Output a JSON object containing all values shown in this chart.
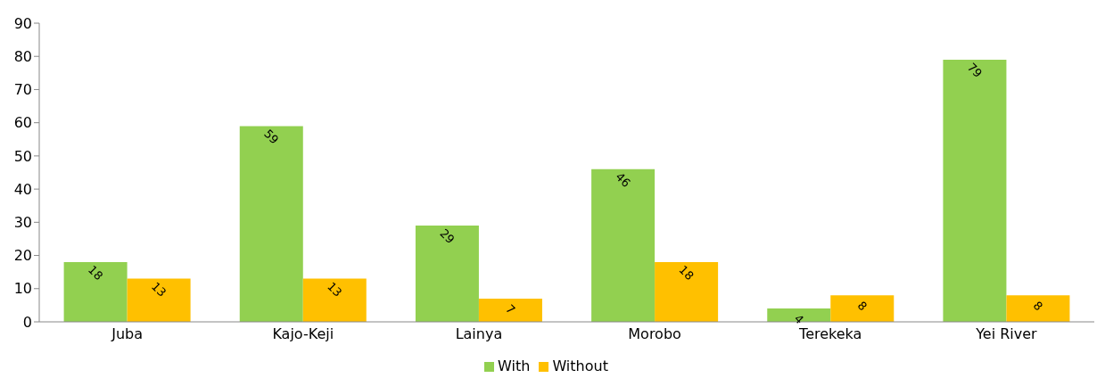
{
  "chart_data": {
    "type": "bar",
    "categories": [
      "Juba",
      "Kajo-Keji",
      "Lainya",
      "Morobo",
      "Terekeka",
      "Yei River"
    ],
    "series": [
      {
        "name": "With",
        "color": "#92d050",
        "values": [
          18,
          59,
          29,
          46,
          4,
          79
        ]
      },
      {
        "name": "Without",
        "color": "#ffc000",
        "values": [
          13,
          13,
          7,
          18,
          8,
          8
        ]
      }
    ],
    "ylim": [
      0,
      90
    ],
    "yticks": [
      0,
      10,
      20,
      30,
      40,
      50,
      60,
      70,
      80,
      90
    ],
    "grid": false,
    "legend": "bottom",
    "data_labels": true
  }
}
